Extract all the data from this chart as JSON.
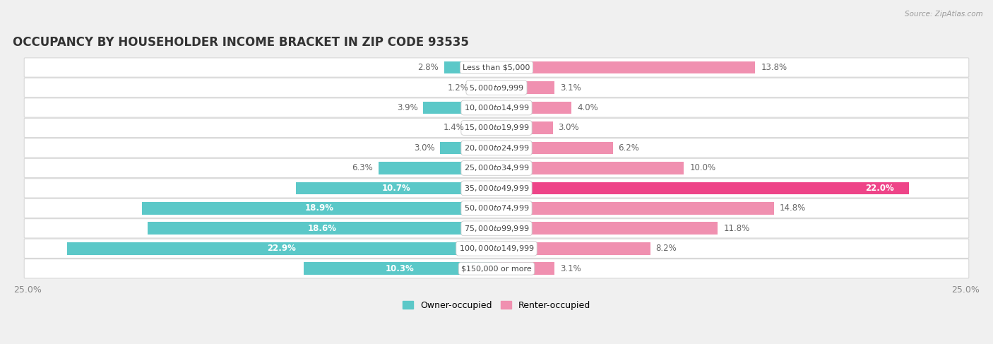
{
  "title": "OCCUPANCY BY HOUSEHOLDER INCOME BRACKET IN ZIP CODE 93535",
  "source": "Source: ZipAtlas.com",
  "categories": [
    "Less than $5,000",
    "$5,000 to $9,999",
    "$10,000 to $14,999",
    "$15,000 to $19,999",
    "$20,000 to $24,999",
    "$25,000 to $34,999",
    "$35,000 to $49,999",
    "$50,000 to $74,999",
    "$75,000 to $99,999",
    "$100,000 to $149,999",
    "$150,000 or more"
  ],
  "owner_values": [
    2.8,
    1.2,
    3.9,
    1.4,
    3.0,
    6.3,
    10.7,
    18.9,
    18.6,
    22.9,
    10.3
  ],
  "renter_values": [
    13.8,
    3.1,
    4.0,
    3.0,
    6.2,
    10.0,
    22.0,
    14.8,
    11.8,
    8.2,
    3.1
  ],
  "owner_color": "#5BC8C8",
  "renter_color": "#F090B0",
  "renter_color_bright": "#EE4488",
  "background_color": "#f0f0f0",
  "bar_background": "#ffffff",
  "max_val": 25.0,
  "title_fontsize": 12,
  "label_fontsize": 8.5,
  "cat_fontsize": 8.0,
  "tick_fontsize": 9,
  "legend_fontsize": 9
}
